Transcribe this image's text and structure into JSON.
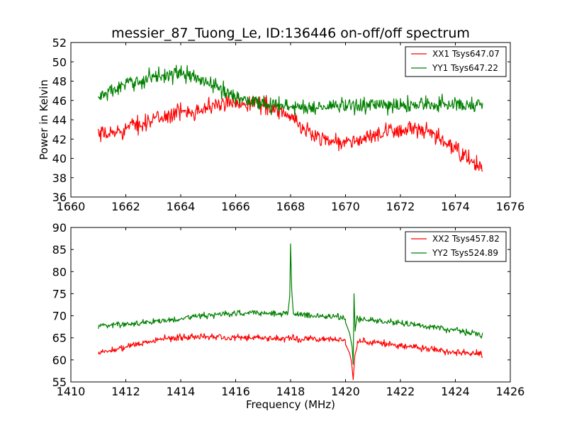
{
  "chart_data": {
    "title": "messier_87_Tuong_Le, ID:136446 on-off/off spectrum",
    "panels": [
      {
        "type": "line",
        "xlabel": "",
        "ylabel": "Power in Kelvin",
        "xlim": [
          1660,
          1676
        ],
        "ylim": [
          36,
          52
        ],
        "xticks": [
          1660,
          1662,
          1664,
          1666,
          1668,
          1670,
          1672,
          1674,
          1676
        ],
        "yticks": [
          36,
          38,
          40,
          42,
          44,
          46,
          48,
          50,
          52
        ],
        "legend_position": "top-right",
        "grid": false,
        "series": [
          {
            "name": "XX1 Tsys647.07",
            "color": "#ff0000",
            "x": [
              1661.0,
              1661.5,
              1662.0,
              1662.5,
              1663.0,
              1663.5,
              1664.0,
              1664.5,
              1665.0,
              1665.5,
              1666.0,
              1666.5,
              1667.0,
              1667.5,
              1668.0,
              1668.5,
              1669.0,
              1669.5,
              1670.0,
              1670.5,
              1671.0,
              1671.5,
              1672.0,
              1672.5,
              1673.0,
              1673.5,
              1674.0,
              1674.5,
              1675.0
            ],
            "values": [
              42.3,
              42.6,
              43.1,
              43.6,
              44.0,
              44.4,
              44.8,
              45.0,
              45.3,
              45.6,
              45.8,
              45.8,
              45.6,
              45.1,
              44.2,
              43.0,
              42.3,
              41.8,
              41.6,
              41.9,
              42.3,
              42.6,
              43.0,
              43.0,
              42.6,
              41.9,
              40.9,
              39.9,
              38.8
            ],
            "noise": 0.8
          },
          {
            "name": "YY1 Tsys647.22",
            "color": "#008000",
            "x": [
              1661.0,
              1661.5,
              1662.0,
              1662.5,
              1663.0,
              1663.5,
              1664.0,
              1664.5,
              1665.0,
              1665.5,
              1666.0,
              1666.5,
              1667.0,
              1667.5,
              1668.0,
              1668.5,
              1669.0,
              1669.5,
              1670.0,
              1670.5,
              1671.0,
              1671.5,
              1672.0,
              1672.5,
              1673.0,
              1673.5,
              1674.0,
              1674.5,
              1675.0
            ],
            "values": [
              46.3,
              47.0,
              47.6,
              48.0,
              48.5,
              48.7,
              48.8,
              48.4,
              47.8,
              47.1,
              46.4,
              46.0,
              45.7,
              45.5,
              45.3,
              45.3,
              45.3,
              45.4,
              45.4,
              45.5,
              45.5,
              45.4,
              45.5,
              45.6,
              45.6,
              45.6,
              45.6,
              45.6,
              45.6
            ],
            "noise": 0.75
          }
        ]
      },
      {
        "type": "line",
        "xlabel": "Frequency (MHz)",
        "ylabel": "",
        "xlim": [
          1410,
          1426
        ],
        "ylim": [
          55,
          90
        ],
        "xticks": [
          1410,
          1412,
          1414,
          1416,
          1418,
          1420,
          1422,
          1424,
          1426
        ],
        "yticks": [
          55,
          60,
          65,
          70,
          75,
          80,
          85,
          90
        ],
        "legend_position": "top-right",
        "grid": false,
        "series": [
          {
            "name": "XX2 Tsys457.82",
            "color": "#ff0000",
            "x": [
              1411.0,
              1411.5,
              1412.0,
              1412.5,
              1413.0,
              1413.5,
              1414.0,
              1414.5,
              1415.0,
              1415.5,
              1416.0,
              1416.5,
              1417.0,
              1417.5,
              1418.0,
              1418.5,
              1419.0,
              1419.5,
              1420.0,
              1420.5,
              1421.0,
              1421.5,
              1422.0,
              1422.5,
              1423.0,
              1423.5,
              1424.0,
              1424.5,
              1425.0
            ],
            "values": [
              61.5,
              62.2,
              63.0,
              63.7,
              64.3,
              64.8,
              65.1,
              65.3,
              65.3,
              65.2,
              65.1,
              65.0,
              64.9,
              64.9,
              64.9,
              64.8,
              64.8,
              64.6,
              64.4,
              64.2,
              64.0,
              63.7,
              63.3,
              62.9,
              62.5,
              62.1,
              61.8,
              61.5,
              61.3
            ],
            "noise": 0.7,
            "features": [
              {
                "x": 1420.0,
                "value": 63.5
              },
              {
                "x": 1420.15,
                "value": 61.5
              },
              {
                "x": 1420.22,
                "value": 59.5
              },
              {
                "x": 1420.28,
                "value": 55.5
              },
              {
                "x": 1420.34,
                "value": 61.0
              },
              {
                "x": 1420.42,
                "value": 63.0
              }
            ]
          },
          {
            "name": "YY2 Tsys524.89",
            "color": "#008000",
            "x": [
              1411.0,
              1411.5,
              1412.0,
              1412.5,
              1413.0,
              1413.5,
              1414.0,
              1414.5,
              1415.0,
              1415.5,
              1416.0,
              1416.5,
              1417.0,
              1417.5,
              1418.0,
              1418.5,
              1419.0,
              1419.5,
              1420.0,
              1420.5,
              1421.0,
              1421.5,
              1422.0,
              1422.5,
              1423.0,
              1423.5,
              1424.0,
              1424.5,
              1425.0
            ],
            "values": [
              67.8,
              67.9,
              68.1,
              68.4,
              68.7,
              69.0,
              69.4,
              69.8,
              70.1,
              70.3,
              70.5,
              70.6,
              70.6,
              70.6,
              70.5,
              70.3,
              70.0,
              69.8,
              69.6,
              69.4,
              69.0,
              68.7,
              68.3,
              67.9,
              67.5,
              67.1,
              66.7,
              66.2,
              65.8
            ],
            "noise": 0.65,
            "features": [
              {
                "x": 1417.9,
                "value": 70.5
              },
              {
                "x": 1417.97,
                "value": 74.5
              },
              {
                "x": 1418.0,
                "value": 86.3
              },
              {
                "x": 1418.04,
                "value": 76.0
              },
              {
                "x": 1418.1,
                "value": 70.5
              },
              {
                "x": 1420.0,
                "value": 68.5
              },
              {
                "x": 1420.15,
                "value": 66.0
              },
              {
                "x": 1420.24,
                "value": 63.0
              },
              {
                "x": 1420.28,
                "value": 59.0
              },
              {
                "x": 1420.31,
                "value": 75.0
              },
              {
                "x": 1420.35,
                "value": 66.5
              },
              {
                "x": 1420.42,
                "value": 70.0
              },
              {
                "x": 1420.5,
                "value": 68.5
              }
            ]
          }
        ]
      }
    ]
  }
}
